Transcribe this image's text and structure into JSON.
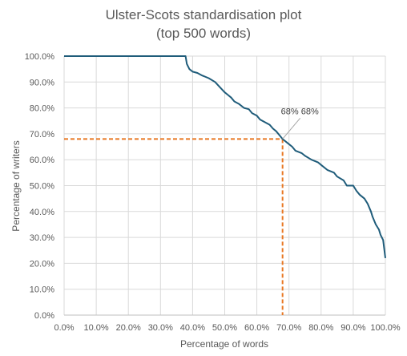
{
  "chart_data": {
    "type": "line",
    "title": "Ulster-Scots standardisation plot",
    "subtitle": "(top 500 words)",
    "xlabel": "Percentage of words",
    "ylabel": "Percentage of writers",
    "xlim": [
      0,
      100
    ],
    "ylim": [
      0,
      100
    ],
    "x_ticks": [
      "0.0%",
      "10.0%",
      "20.0%",
      "30.0%",
      "40.0%",
      "50.0%",
      "60.0%",
      "70.0%",
      "80.0%",
      "90.0%",
      "100.0%"
    ],
    "y_ticks": [
      "0.0%",
      "10.0%",
      "20.0%",
      "30.0%",
      "40.0%",
      "50.0%",
      "60.0%",
      "70.0%",
      "80.0%",
      "90.0%",
      "100.0%"
    ],
    "grid": true,
    "series": [
      {
        "color": "#1f5c7a",
        "points": [
          [
            0,
            100
          ],
          [
            37.8,
            100
          ],
          [
            38.2,
            97
          ],
          [
            39,
            95
          ],
          [
            40,
            94
          ],
          [
            41.5,
            93.5
          ],
          [
            43,
            92.5
          ],
          [
            45,
            91.5
          ],
          [
            47,
            90
          ],
          [
            48.5,
            88
          ],
          [
            50,
            86
          ],
          [
            51,
            85
          ],
          [
            52,
            84
          ],
          [
            53,
            82.5
          ],
          [
            54.5,
            81.5
          ],
          [
            56,
            80
          ],
          [
            57.5,
            79.5
          ],
          [
            58.5,
            78
          ],
          [
            60,
            77
          ],
          [
            61,
            75.5
          ],
          [
            62.5,
            74.5
          ],
          [
            64,
            73.5
          ],
          [
            65,
            72
          ],
          [
            66,
            71
          ],
          [
            67,
            69.5
          ],
          [
            68,
            68
          ],
          [
            69.5,
            66.5
          ],
          [
            71,
            65
          ],
          [
            72,
            63.5
          ],
          [
            74,
            62.5
          ],
          [
            75,
            61.5
          ],
          [
            77,
            60
          ],
          [
            79,
            59
          ],
          [
            80,
            58
          ],
          [
            82,
            56
          ],
          [
            84,
            55
          ],
          [
            85,
            53.5
          ],
          [
            87,
            52
          ],
          [
            88,
            50
          ],
          [
            90,
            50
          ],
          [
            91,
            48
          ],
          [
            92,
            46.5
          ],
          [
            93.5,
            45
          ],
          [
            94.5,
            43
          ],
          [
            95.5,
            40
          ],
          [
            96,
            38
          ],
          [
            97,
            35
          ],
          [
            98,
            33
          ],
          [
            98.5,
            31
          ],
          [
            99.3,
            29
          ],
          [
            99.6,
            26
          ],
          [
            100,
            22
          ]
        ]
      }
    ],
    "reference_lines": {
      "color": "#e87722",
      "x": 68,
      "y": 68
    },
    "annotation": {
      "label": "68% 68%",
      "x": 68,
      "y": 68
    }
  }
}
